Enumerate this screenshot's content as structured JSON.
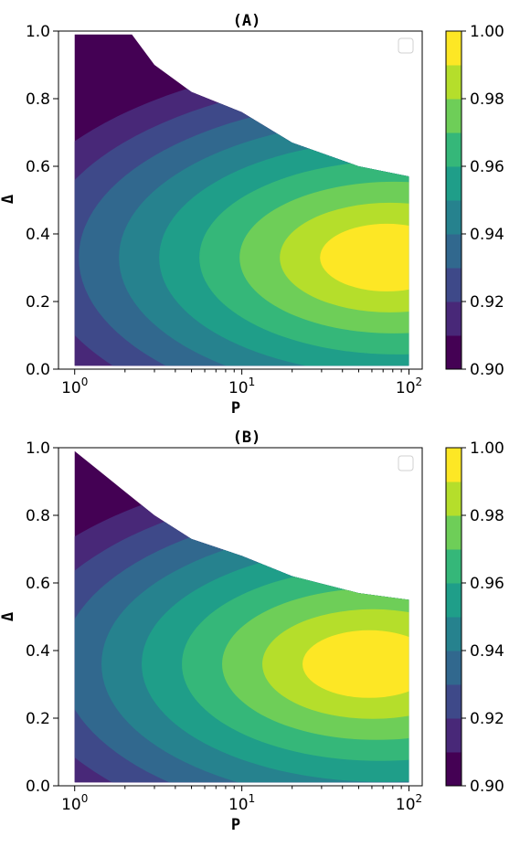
{
  "figure": {
    "colormap": [
      "#440154",
      "#482878",
      "#3e4989",
      "#31688e",
      "#26828e",
      "#1f9e89",
      "#35b779",
      "#6ece58",
      "#b5de2b",
      "#fde725"
    ]
  },
  "chart_data": [
    {
      "type": "heatmap",
      "subtype": "filled-contour",
      "title": "(A)",
      "xlabel": "P",
      "ylabel": "Δ",
      "xscale": "log",
      "xlim": [
        0.8,
        120
      ],
      "ylim": [
        0.0,
        1.0
      ],
      "x_tick_labels": [
        {
          "base": "10",
          "exp": "0"
        },
        {
          "base": "10",
          "exp": "1"
        },
        {
          "base": "10",
          "exp": "2"
        }
      ],
      "y_tick_labels": [
        "0.0",
        "0.2",
        "0.4",
        "0.6",
        "0.8",
        "1.0"
      ],
      "colorbar": {
        "levels": [
          0.9,
          0.91,
          0.92,
          0.93,
          0.94,
          0.95,
          0.96,
          0.97,
          0.98,
          0.99,
          1.0
        ],
        "tick_labels": [
          "0.90",
          "0.92",
          "0.94",
          "0.96",
          "0.98",
          "1.00"
        ]
      },
      "legend": "top-right (empty)",
      "peak": {
        "P": 70,
        "Delta": 0.33,
        "value": 0.995
      },
      "boundary_Delta_max": [
        [
          1,
          0.99
        ],
        [
          2.2,
          0.99
        ],
        [
          3,
          0.9
        ],
        [
          5,
          0.82
        ],
        [
          10,
          0.76
        ],
        [
          20,
          0.67
        ],
        [
          50,
          0.6
        ],
        [
          100,
          0.57
        ]
      ]
    },
    {
      "type": "heatmap",
      "subtype": "filled-contour",
      "title": "(B)",
      "xlabel": "P",
      "ylabel": "Δ",
      "xscale": "log",
      "xlim": [
        0.8,
        120
      ],
      "ylim": [
        0.0,
        1.0
      ],
      "x_tick_labels": [
        {
          "base": "10",
          "exp": "0"
        },
        {
          "base": "10",
          "exp": "1"
        },
        {
          "base": "10",
          "exp": "2"
        }
      ],
      "y_tick_labels": [
        "0.0",
        "0.2",
        "0.4",
        "0.6",
        "0.8",
        "1.0"
      ],
      "colorbar": {
        "levels": [
          0.9,
          0.91,
          0.92,
          0.93,
          0.94,
          0.95,
          0.96,
          0.97,
          0.98,
          0.99,
          1.0
        ],
        "tick_labels": [
          "0.90",
          "0.92",
          "0.94",
          "0.96",
          "0.98",
          "1.00"
        ]
      },
      "legend": "top-right (empty)",
      "peak": {
        "P": 55,
        "Delta": 0.36,
        "value": 0.993
      },
      "boundary_Delta_max": [
        [
          1,
          0.99
        ],
        [
          2,
          0.87
        ],
        [
          3,
          0.8
        ],
        [
          5,
          0.73
        ],
        [
          10,
          0.68
        ],
        [
          20,
          0.62
        ],
        [
          50,
          0.57
        ],
        [
          100,
          0.55
        ]
      ]
    }
  ]
}
